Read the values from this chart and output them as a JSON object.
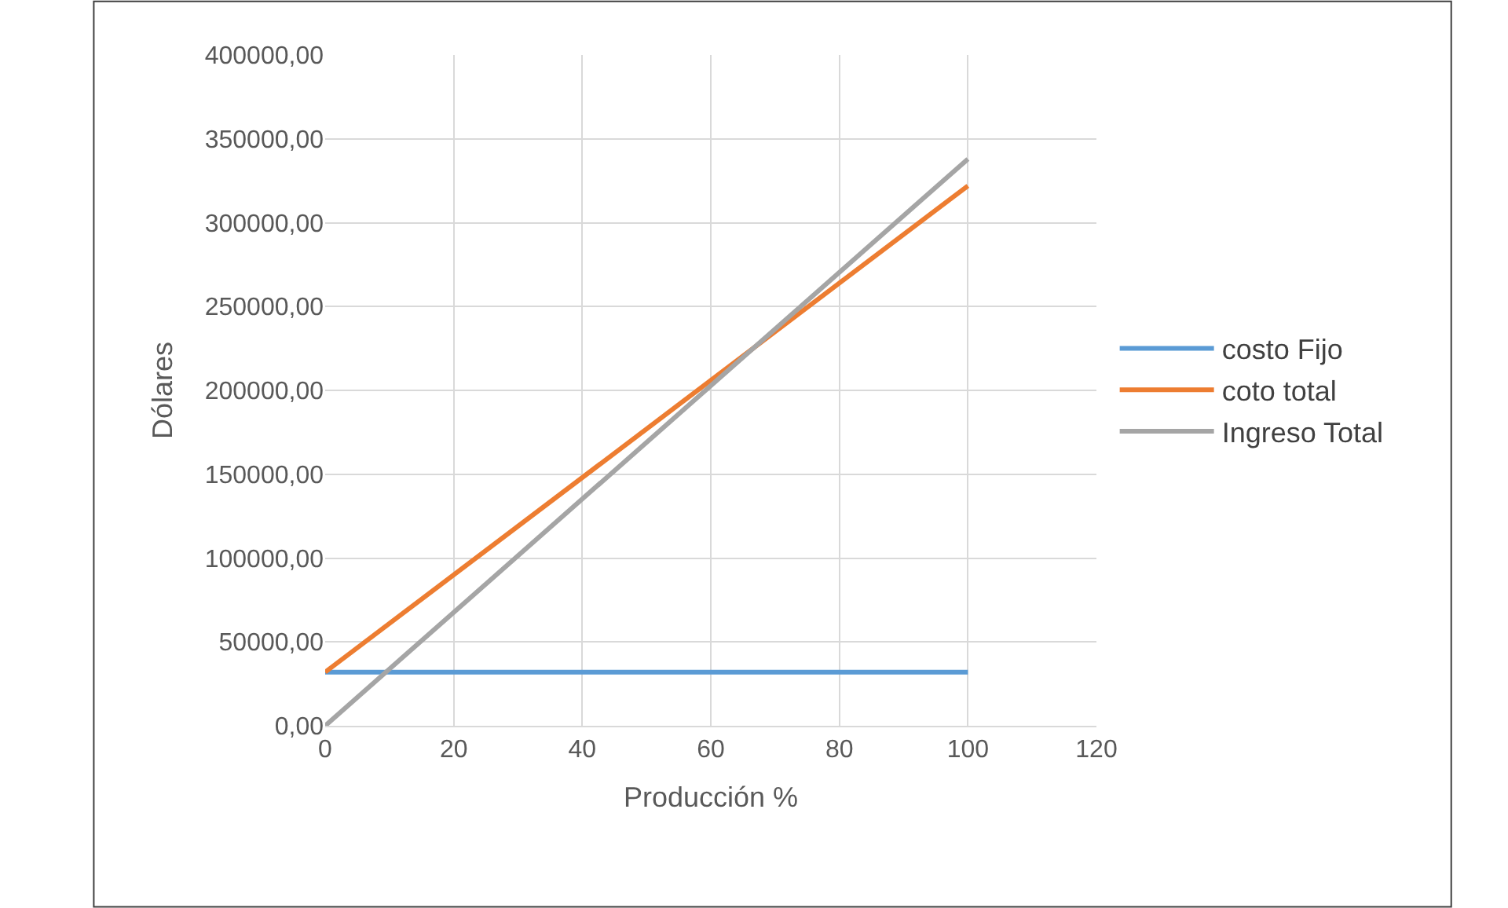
{
  "chart_data": {
    "type": "line",
    "xlabel": "Producción %",
    "ylabel": "Dólares",
    "x": [
      0,
      100
    ],
    "series": [
      {
        "name": "costo Fijo",
        "color": "#5b9bd5",
        "values": [
          32000,
          32000
        ]
      },
      {
        "name": "coto total",
        "color": "#ed7d31",
        "values": [
          32000,
          322000
        ]
      },
      {
        "name": "Ingreso Total",
        "color": "#a5a5a5",
        "values": [
          0,
          338000
        ]
      }
    ],
    "xlim": [
      0,
      120
    ],
    "xticks": [
      0,
      20,
      40,
      60,
      80,
      100,
      120
    ],
    "ylim": [
      0,
      400000
    ],
    "yticks": [
      {
        "value": 0,
        "label": "0,00"
      },
      {
        "value": 50000,
        "label": "50000,00"
      },
      {
        "value": 100000,
        "label": "100000,00"
      },
      {
        "value": 150000,
        "label": "150000,00"
      },
      {
        "value": 200000,
        "label": "200000,00"
      },
      {
        "value": 250000,
        "label": "250000,00"
      },
      {
        "value": 300000,
        "label": "300000,00"
      },
      {
        "value": 350000,
        "label": "350000,00"
      },
      {
        "value": 400000,
        "label": "400000,00"
      }
    ],
    "grid": true,
    "legend": "right",
    "marker": "none",
    "line_style": "solid"
  }
}
